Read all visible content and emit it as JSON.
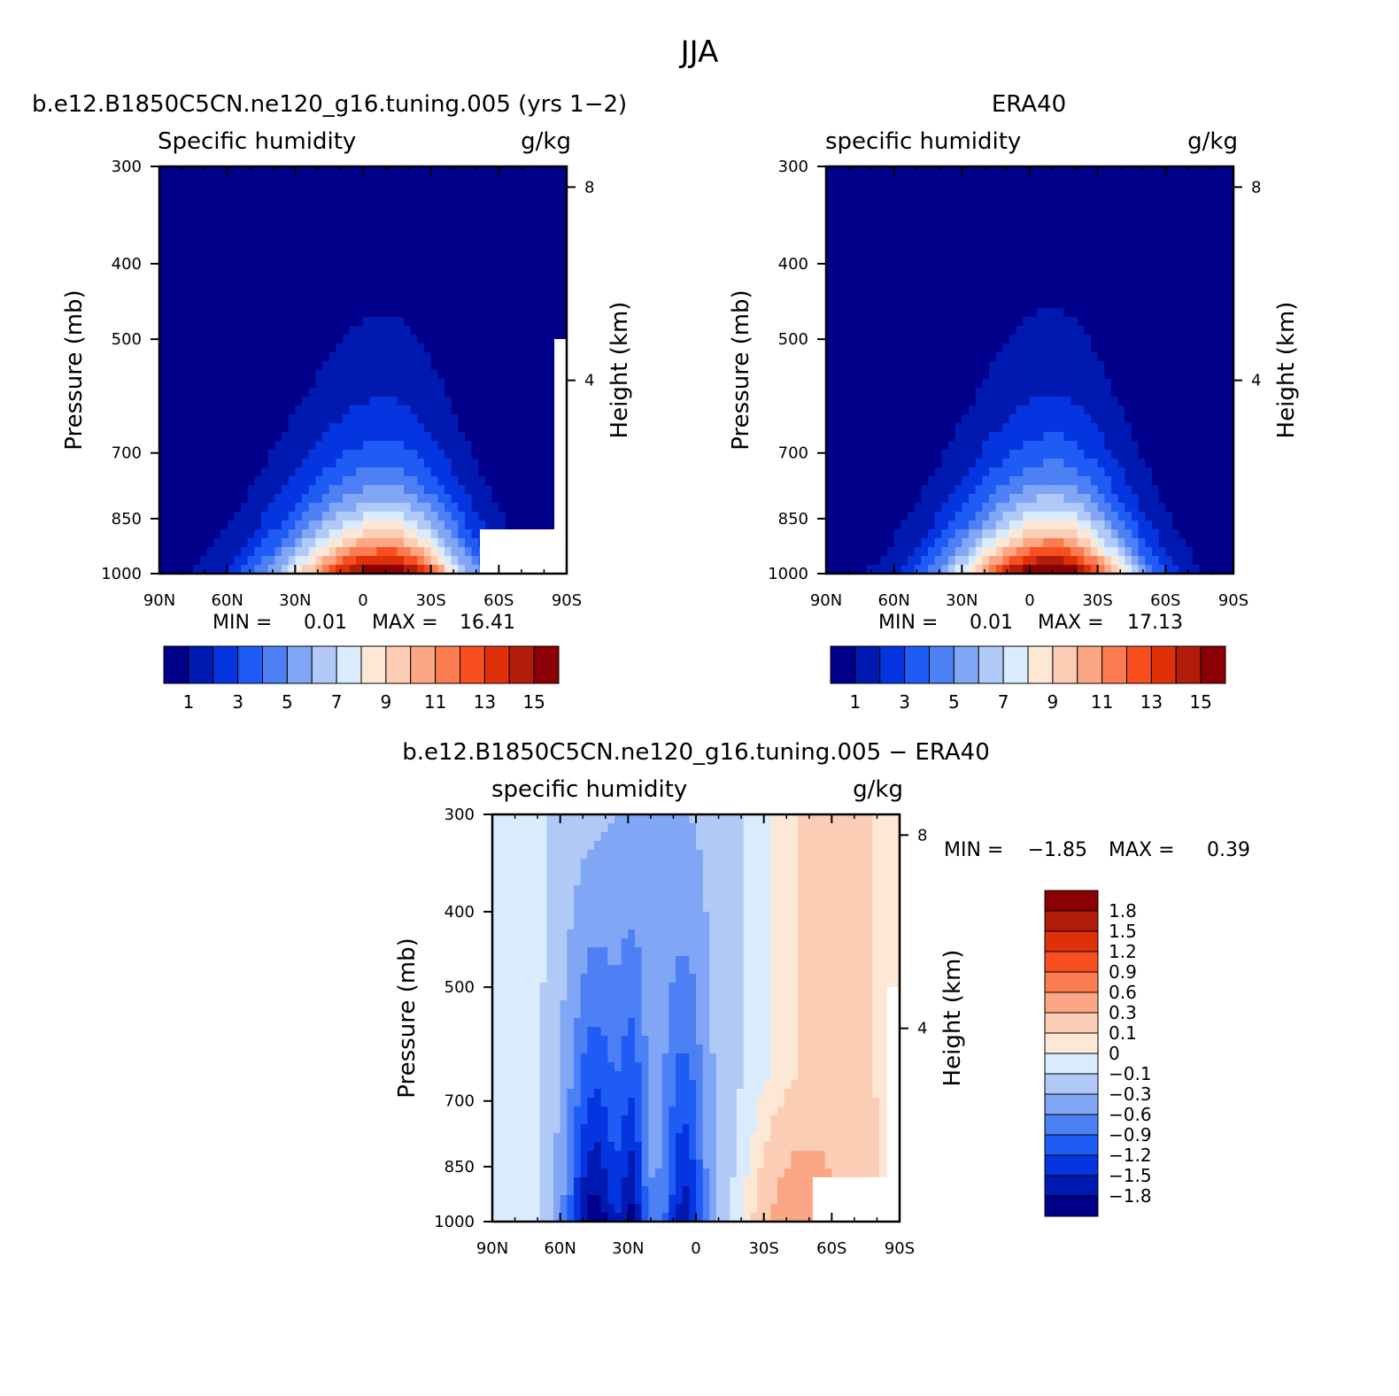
{
  "figure": {
    "main_title": "JJA"
  },
  "chart_data": [
    {
      "type": "contour",
      "title": "b.e12.B1850C5CN.ne120_g16.tuning.005 (yrs 1−2)",
      "left_label": "Specific humidity",
      "right_label": "g/kg",
      "xlabel": "",
      "ylabel": "Pressure (mb)",
      "y2label": "Height (km)",
      "x_ticks": [
        "90N",
        "60N",
        "30N",
        "0",
        "30S",
        "60S",
        "90S"
      ],
      "y_ticks": [
        "300",
        "400",
        "500",
        "700",
        "850",
        "1000"
      ],
      "y2_ticks": [
        "8",
        "4"
      ],
      "min_label": "MIN =",
      "min_value": "0.01",
      "max_label": "MAX =",
      "max_value": "16.41",
      "colorbar_levels": [
        1,
        2,
        3,
        4,
        5,
        6,
        7,
        8,
        9,
        10,
        11,
        12,
        13,
        14,
        15
      ],
      "colorbar_labels": [
        "1",
        "3",
        "5",
        "7",
        "9",
        "11",
        "13",
        "15"
      ],
      "peak_lat": -10,
      "peak_value": 16.41,
      "masked": true
    },
    {
      "type": "contour",
      "title": "ERA40",
      "left_label": "specific humidity",
      "right_label": "g/kg",
      "xlabel": "",
      "ylabel": "Pressure (mb)",
      "y2label": "Height (km)",
      "x_ticks": [
        "90N",
        "60N",
        "30N",
        "0",
        "30S",
        "60S",
        "90S"
      ],
      "y_ticks": [
        "300",
        "400",
        "500",
        "700",
        "850",
        "1000"
      ],
      "y2_ticks": [
        "8",
        "4"
      ],
      "min_label": "MIN =",
      "min_value": "0.01",
      "max_label": "MAX =",
      "max_value": "17.13",
      "colorbar_levels": [
        1,
        2,
        3,
        4,
        5,
        6,
        7,
        8,
        9,
        10,
        11,
        12,
        13,
        14,
        15
      ],
      "colorbar_labels": [
        "1",
        "3",
        "5",
        "7",
        "9",
        "11",
        "13",
        "15"
      ],
      "peak_lat": -10,
      "peak_value": 17.13,
      "masked": false
    },
    {
      "type": "contour",
      "title": "b.e12.B1850C5CN.ne120_g16.tuning.005 − ERA40",
      "left_label": "specific humidity",
      "right_label": "g/kg",
      "xlabel": "",
      "ylabel": "Pressure (mb)",
      "y2label": "Height (km)",
      "x_ticks": [
        "90N",
        "60N",
        "30N",
        "0",
        "30S",
        "60S",
        "90S"
      ],
      "y_ticks": [
        "300",
        "400",
        "500",
        "700",
        "850",
        "1000"
      ],
      "y2_ticks": [
        "8",
        "4"
      ],
      "min_label": "MIN =",
      "min_value": "−1.85",
      "max_label": "MAX =",
      "max_value": "0.39",
      "colorbar_levels": [
        -1.8,
        -1.5,
        -1.2,
        -0.9,
        -0.6,
        -0.3,
        -0.1,
        0,
        0.1,
        0.3,
        0.6,
        0.9,
        1.2,
        1.5,
        1.8
      ],
      "colorbar_labels": [
        "−1.8",
        "−1.5",
        "−1.2",
        "−0.9",
        "−0.6",
        "−0.3",
        "−0.1",
        "0",
        "0.1",
        "0.3",
        "0.6",
        "0.9",
        "1.2",
        "1.5",
        "1.8"
      ],
      "masked": true
    }
  ],
  "palette": [
    "#00008a",
    "#0019b0",
    "#0535e0",
    "#1f5cf5",
    "#4d80f5",
    "#80a6f5",
    "#b0c9f7",
    "#d9ebfc",
    "#fde8d6",
    "#fccdb5",
    "#fba785",
    "#fb7c50",
    "#f74f20",
    "#e0300a",
    "#b21c0a",
    "#8a0005"
  ]
}
